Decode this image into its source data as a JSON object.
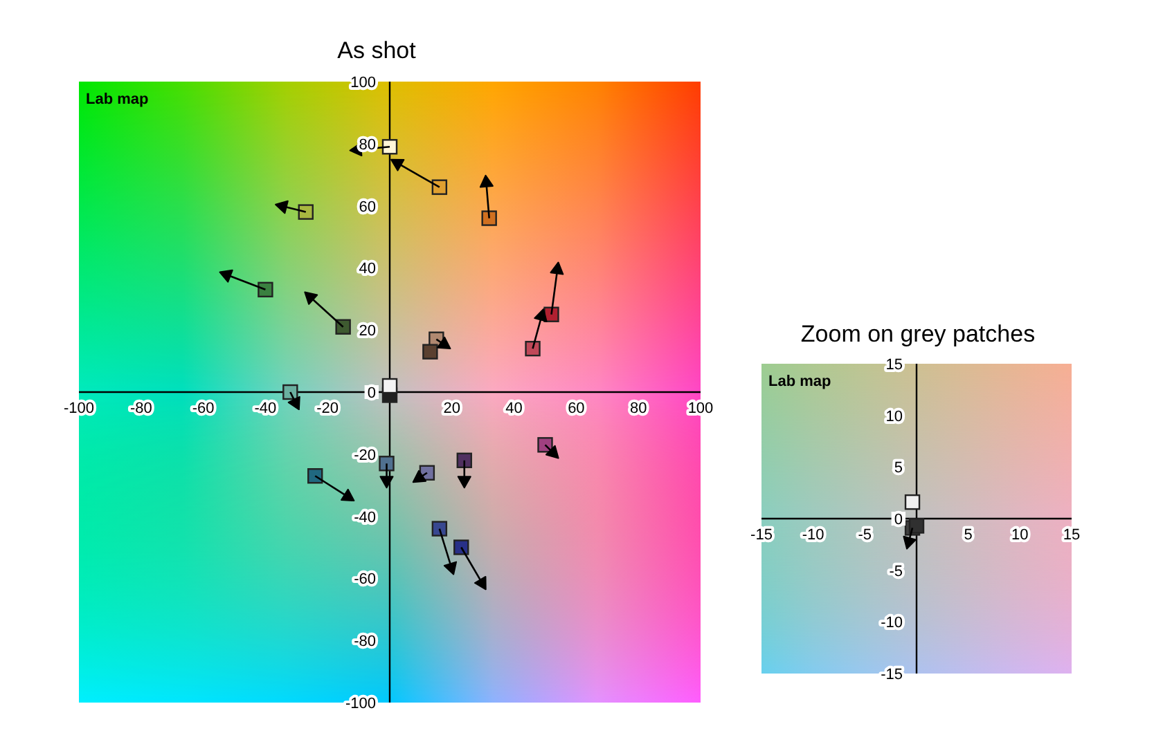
{
  "chart_data": [
    {
      "type": "scatter",
      "title": "As shot",
      "annotations": [
        "Lab map"
      ],
      "xlim": [
        -100,
        100
      ],
      "ylim": [
        -100,
        100
      ],
      "xticks": [
        -100,
        -80,
        -60,
        -40,
        -20,
        20,
        40,
        60,
        80,
        100
      ],
      "yticks": [
        -100,
        -80,
        -60,
        -40,
        -20,
        0,
        20,
        40,
        60,
        80,
        100
      ],
      "marker": "square",
      "series": [
        {
          "type": "scatter",
          "x": [
            0,
            -27,
            -40,
            -15,
            -32,
            16,
            32,
            52,
            46,
            15,
            13,
            0,
            0,
            -1,
            12,
            24,
            50,
            16,
            23,
            -24
          ],
          "values": [
            79,
            58,
            33,
            21,
            0,
            66,
            56,
            25,
            14,
            17,
            13,
            -1,
            2,
            -23,
            -26,
            -22,
            -17,
            -44,
            -50,
            -27
          ],
          "colors": [
            "#fff6d8",
            "#a8b840",
            "#3a8040",
            "#3e5a30",
            "#6ab0a0",
            "#e0a030",
            "#d07020",
            "#b02030",
            "#c04858",
            "#b08870",
            "#5a4030",
            "#202020",
            "#f4f4f4",
            "#507090",
            "#7070a0",
            "#503060",
            "#a04080",
            "#384890",
            "#283088",
            "#206880"
          ]
        },
        {
          "type": "scatter",
          "marker": "triangle",
          "color": "#000000",
          "x": [
            -11,
            -35,
            -53,
            -26,
            -30,
            2,
            31,
            54,
            49,
            18,
            null,
            null,
            null,
            -1,
            9,
            24,
            53,
            20,
            30,
            -13
          ],
          "values": [
            78,
            60,
            38,
            31,
            -4,
            74,
            68,
            40,
            25,
            15,
            null,
            null,
            null,
            -29,
            -28,
            -29,
            -20,
            -57,
            -62,
            -34
          ]
        }
      ]
    },
    {
      "type": "scatter",
      "title": "Zoom on grey patches",
      "annotations": [
        "Lab map"
      ],
      "xlim": [
        -15,
        15
      ],
      "ylim": [
        -15,
        15
      ],
      "xticks": [
        -15,
        -10,
        -5,
        5,
        10,
        15
      ],
      "yticks": [
        -15,
        -10,
        -5,
        0,
        5,
        10,
        15
      ],
      "marker": "square",
      "series": [
        {
          "type": "scatter",
          "x": [
            -0.4,
            0,
            -0.4
          ],
          "values": [
            -0.9,
            -0.7,
            1.6
          ],
          "colors": [
            "#404040",
            "#303030",
            "#f0f0f0"
          ]
        },
        {
          "type": "scatter",
          "marker": "triangle",
          "color": "#000000",
          "x": [
            -0.8,
            null,
            null
          ],
          "values": [
            -2.4,
            null,
            null
          ]
        }
      ]
    }
  ]
}
